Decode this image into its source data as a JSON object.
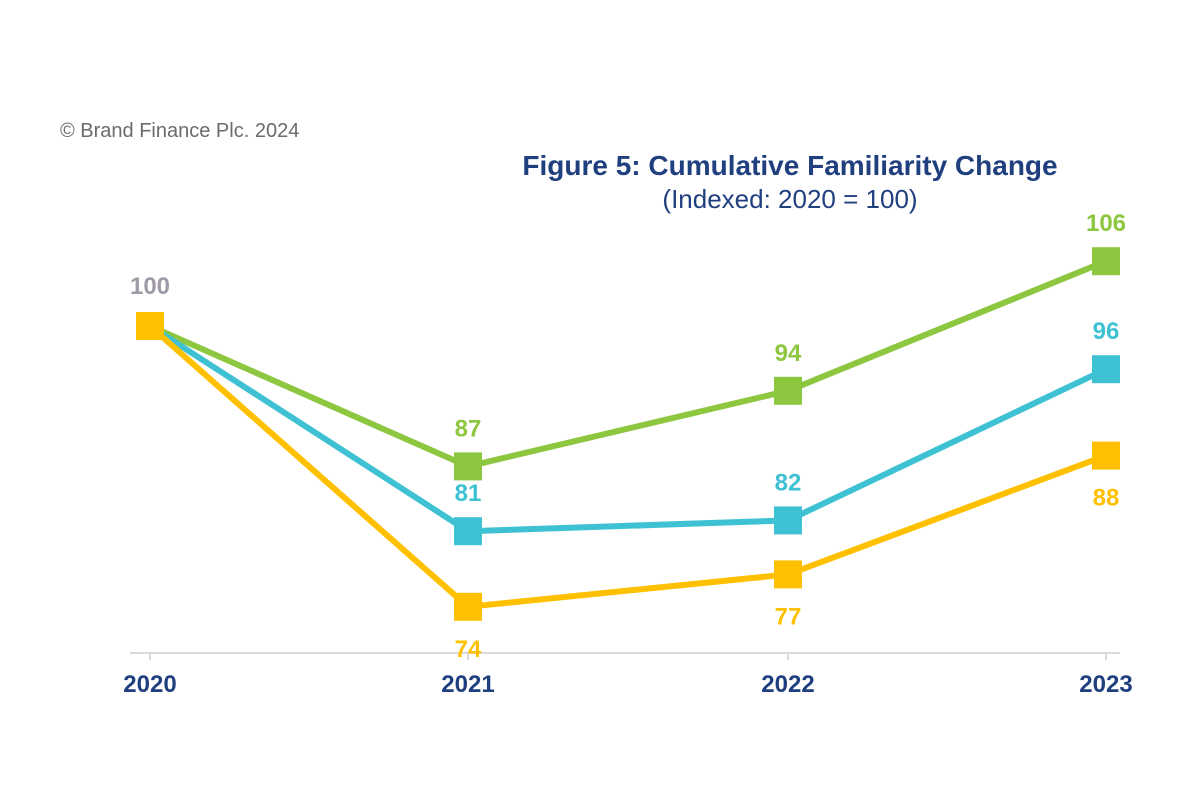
{
  "copyright": "© Brand Finance Plc. 2024",
  "chart_data": {
    "type": "line",
    "title": "Figure 5: Cumulative Familiarity Change",
    "subtitle": "(Indexed: 2020 = 100)",
    "categories": [
      "2020",
      "2021",
      "2022",
      "2023"
    ],
    "ylim": [
      70,
      110
    ],
    "grid": false,
    "legend": "none",
    "start_label": {
      "value": 100,
      "color": "#a09aa8"
    },
    "series": [
      {
        "values": [
          100,
          87,
          94,
          106
        ],
        "color": "#8dc63f",
        "labels": [
          "",
          "87",
          "94",
          "106"
        ],
        "label_pos": "above"
      },
      {
        "values": [
          100,
          81,
          82,
          96
        ],
        "color": "#3ec1d3",
        "labels": [
          "",
          "81",
          "82",
          "96"
        ],
        "label_pos": "above"
      },
      {
        "values": [
          100,
          74,
          77,
          88
        ],
        "color": "#ffc000",
        "labels": [
          "",
          "74",
          "77",
          "88"
        ],
        "label_pos": "below"
      }
    ]
  }
}
